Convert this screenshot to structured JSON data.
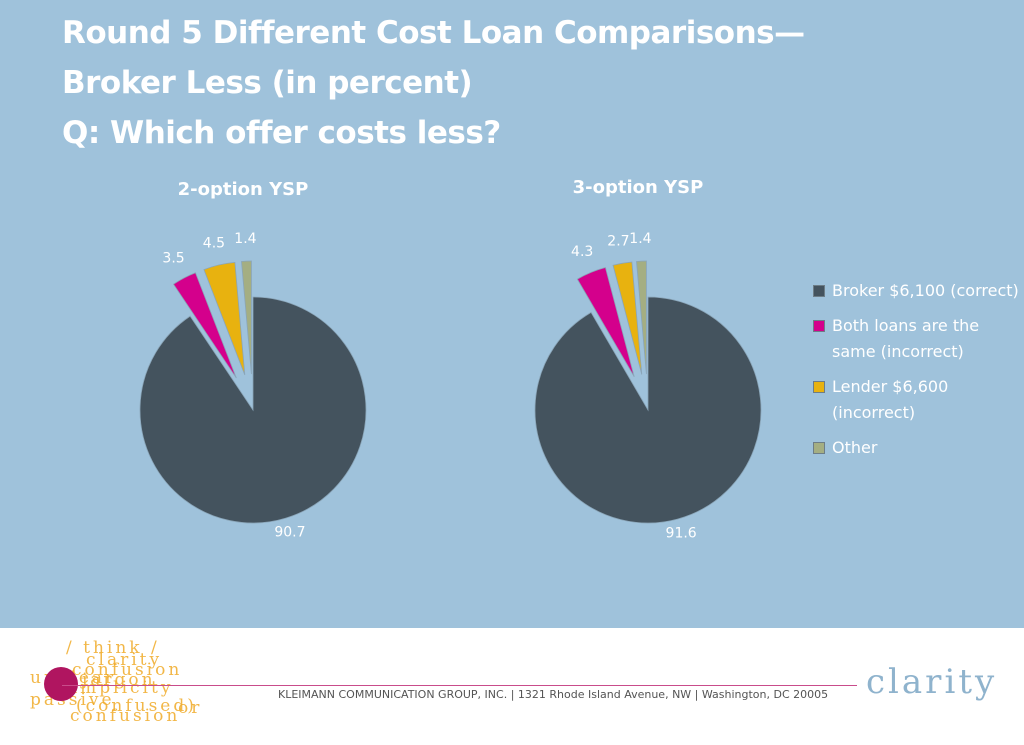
{
  "slide": {
    "title_lines": [
      "Round 5 Different Cost Loan Comparisons—",
      "Broker Less (in percent)",
      "Q: Which offer costs less?"
    ]
  },
  "colors": {
    "background": "#9fc2db",
    "broker": "#44535e",
    "both_same": "#d4008c",
    "lender": "#e8b20f",
    "other": "#a4ae82",
    "footer_accent": "#b01560",
    "brand": "#8fb3cd"
  },
  "chart_data": [
    {
      "type": "pie",
      "title": "2-option YSP",
      "categories": [
        "Broker $6,100 (correct)",
        "Both loans are the same (incorrect)",
        "Lender $6,600 (incorrect)",
        "Other"
      ],
      "values": [
        90.7,
        3.5,
        4.5,
        1.4
      ],
      "value_labels": [
        "90.7",
        "3.5",
        "4.5",
        "1.4"
      ],
      "exploded": [
        false,
        true,
        true,
        true
      ],
      "legend_position": "right"
    },
    {
      "type": "pie",
      "title": "3-option YSP",
      "categories": [
        "Broker $6,100 (correct)",
        "Both loans are the same (incorrect)",
        "Lender $6,600 (incorrect)",
        "Other"
      ],
      "values": [
        91.6,
        4.3,
        2.7,
        1.4
      ],
      "value_labels": [
        "91.6",
        "4.3",
        "2.7",
        "1.4"
      ],
      "exploded": [
        false,
        true,
        true,
        true
      ],
      "legend_position": "right"
    }
  ],
  "legend": {
    "items": [
      {
        "key": "broker",
        "label": "Broker $6,100 (correct)"
      },
      {
        "key": "both_same",
        "label": "Both loans are the same (incorrect)"
      },
      {
        "key": "lender",
        "label": "Lender $6,600 (incorrect)"
      },
      {
        "key": "other",
        "label": "Other"
      }
    ]
  },
  "footer": {
    "address": "KLEIMANN COMMUNICATION GROUP, INC. | 1321 Rhode Island Avenue, NW | Washington, DC 20005",
    "brand": "clarity",
    "logo_words": [
      "/ think /",
      "clarity",
      "confusion",
      "unclear",
      "jargon",
      "simplicity",
      "passive",
      "(confused)",
      "or",
      "confusion"
    ]
  }
}
